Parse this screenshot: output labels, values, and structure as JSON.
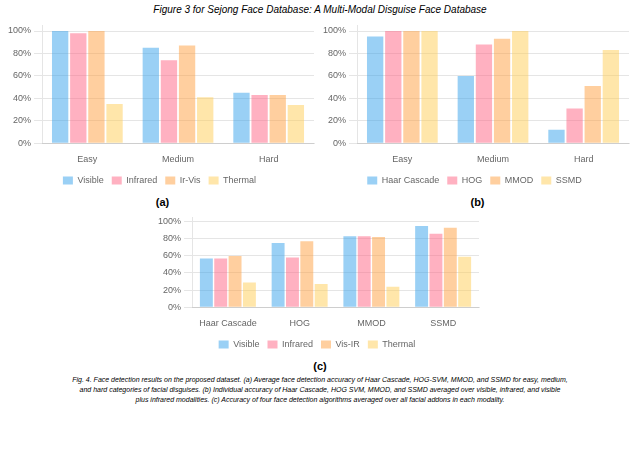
{
  "title": "Figure 3 for Sejong Face Database: A Multi-Modal Disguise Face Database",
  "annotations": [
    "Fig. 4. Face detection results on the proposed dataset. (a) Average face detection accuracy of Haar Cascade, HOG-SVM, MMOD, and SSMD for easy, medium,",
    "and hard categories of facial disguises. (b) Individual accuracy of Haar Cascade, HOG SVM, MMOD, and SSMD averaged over visible, infrared, and visible",
    "plus infrared modalities. (c) Accuracy of four face detection algorithms averaged over all facial addons in each modality."
  ],
  "chart_data": [
    {
      "type": "bar",
      "title": "(a)",
      "categories": [
        "Easy",
        "Medium",
        "Hard"
      ],
      "series": [
        {
          "name": "Visible",
          "values": [
            1.0,
            0.85,
            0.45
          ]
        },
        {
          "name": "Infrared",
          "values": [
            0.98,
            0.74,
            0.43
          ]
        },
        {
          "name": "Ir-Vis",
          "values": [
            1.0,
            0.87,
            0.43
          ]
        },
        {
          "name": "Thermal",
          "values": [
            0.35,
            0.41,
            0.34
          ]
        }
      ],
      "ylim": [
        0,
        1.05
      ],
      "yticks": [
        {
          "value": 0.0,
          "label": "0%"
        },
        {
          "value": 0.2,
          "label": "20%"
        },
        {
          "value": 0.4,
          "label": "40%"
        },
        {
          "value": 0.6,
          "label": "60%"
        },
        {
          "value": 0.8,
          "label": "80%"
        },
        {
          "value": 1.0,
          "label": "100%"
        }
      ],
      "grid": true,
      "legend": "bottom"
    },
    {
      "type": "bar",
      "title": "(b)",
      "categories": [
        "Easy",
        "Medium",
        "Hard"
      ],
      "series": [
        {
          "name": "Haar Cascade",
          "values": [
            0.95,
            0.6,
            0.12
          ]
        },
        {
          "name": "HOG",
          "values": [
            1.0,
            0.88,
            0.31
          ]
        },
        {
          "name": "MMOD",
          "values": [
            1.0,
            0.93,
            0.51
          ]
        },
        {
          "name": "SSMD",
          "values": [
            1.0,
            1.0,
            0.83
          ]
        }
      ],
      "ylim": [
        0,
        1.05
      ],
      "yticks": [
        {
          "value": 0.0,
          "label": "0%"
        },
        {
          "value": 0.2,
          "label": "20%"
        },
        {
          "value": 0.4,
          "label": "40%"
        },
        {
          "value": 0.6,
          "label": "60%"
        },
        {
          "value": 0.8,
          "label": "80%"
        },
        {
          "value": 1.0,
          "label": "100%"
        }
      ],
      "grid": true,
      "legend": "bottom"
    },
    {
      "type": "bar",
      "title": "(c)",
      "categories": [
        "Haar Cascade",
        "HOG",
        "MMOD",
        "SSMD"
      ],
      "series": [
        {
          "name": "Visible",
          "values": [
            0.57,
            0.75,
            0.83,
            0.95
          ]
        },
        {
          "name": "Infrared",
          "values": [
            0.57,
            0.58,
            0.83,
            0.86
          ]
        },
        {
          "name": "Vis-IR",
          "values": [
            0.6,
            0.77,
            0.82,
            0.93
          ]
        },
        {
          "name": "Thermal",
          "values": [
            0.29,
            0.27,
            0.24,
            0.59
          ]
        }
      ],
      "ylim": [
        0,
        1.05
      ],
      "yticks": [
        {
          "value": 0.0,
          "label": "0%"
        },
        {
          "value": 0.2,
          "label": "20%"
        },
        {
          "value": 0.4,
          "label": "40%"
        },
        {
          "value": 0.6,
          "label": "60%"
        },
        {
          "value": 0.8,
          "label": "80%"
        },
        {
          "value": 1.0,
          "label": "100%"
        }
      ],
      "grid": true,
      "legend": "bottom"
    }
  ]
}
